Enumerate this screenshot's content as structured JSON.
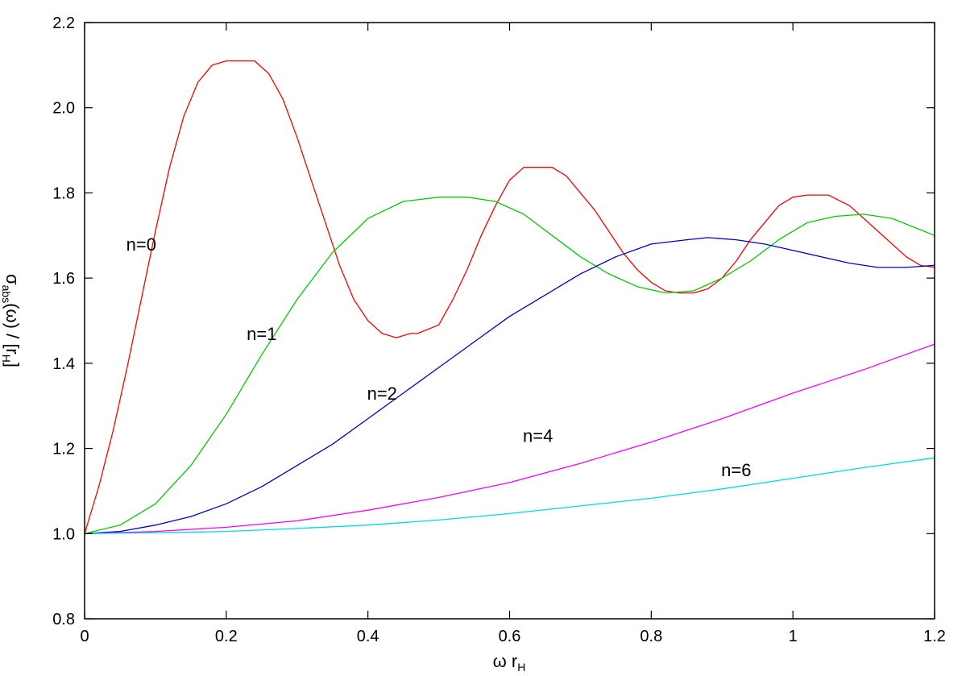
{
  "chart_data": {
    "type": "line",
    "xlabel": "ω r",
    "xlabel_sub": "H",
    "ylabel": "σ",
    "ylabel_sub": "abs",
    "ylabel_suffix": "(ω) / [r",
    "ylabel_suffix_sub": "H",
    "ylabel_suffix_end": "]",
    "xlim": [
      0,
      1.2
    ],
    "ylim": [
      0.8,
      2.2
    ],
    "xticks": [
      0,
      0.2,
      0.4,
      0.6,
      0.8,
      1,
      1.2
    ],
    "xtick_labels": [
      "0",
      "0.2",
      "0.4",
      "0.6",
      "0.8",
      "1",
      "1.2"
    ],
    "yticks": [
      0.8,
      1.0,
      1.2,
      1.4,
      1.6,
      1.8,
      2.0,
      2.2
    ],
    "ytick_labels": [
      "0.8",
      "1.0",
      "1.2",
      "1.4",
      "1.6",
      "1.8",
      "2.0",
      "2.2"
    ],
    "grid": false,
    "series": [
      {
        "name": "n=0",
        "color": "#ff0000",
        "label_at": [
          0.08,
          1.68
        ],
        "x": [
          0,
          0.02,
          0.04,
          0.06,
          0.08,
          0.1,
          0.12,
          0.14,
          0.16,
          0.18,
          0.2,
          0.22,
          0.24,
          0.26,
          0.28,
          0.3,
          0.32,
          0.34,
          0.36,
          0.38,
          0.4,
          0.42,
          0.44,
          0.46,
          0.47,
          0.5,
          0.52,
          0.54,
          0.56,
          0.58,
          0.6,
          0.62,
          0.64,
          0.66,
          0.68,
          0.7,
          0.72,
          0.74,
          0.76,
          0.78,
          0.8,
          0.82,
          0.84,
          0.86,
          0.88,
          0.9,
          0.92,
          0.94,
          0.96,
          0.98,
          1.0,
          1.02,
          1.05,
          1.08,
          1.1,
          1.12,
          1.14,
          1.16,
          1.18,
          1.2
        ],
        "y": [
          1.0,
          1.11,
          1.24,
          1.39,
          1.55,
          1.71,
          1.86,
          1.98,
          2.06,
          2.1,
          2.11,
          2.11,
          2.11,
          2.08,
          2.02,
          1.93,
          1.83,
          1.73,
          1.63,
          1.55,
          1.5,
          1.47,
          1.46,
          1.47,
          1.47,
          1.49,
          1.55,
          1.62,
          1.7,
          1.77,
          1.83,
          1.86,
          1.86,
          1.86,
          1.84,
          1.8,
          1.76,
          1.71,
          1.66,
          1.62,
          1.59,
          1.57,
          1.565,
          1.565,
          1.575,
          1.6,
          1.64,
          1.69,
          1.73,
          1.77,
          1.79,
          1.795,
          1.795,
          1.77,
          1.74,
          1.71,
          1.68,
          1.65,
          1.63,
          1.625
        ]
      },
      {
        "name": "n=1",
        "color": "#00cc00",
        "label_at": [
          0.25,
          1.47
        ],
        "x": [
          0,
          0.05,
          0.1,
          0.15,
          0.2,
          0.25,
          0.3,
          0.35,
          0.4,
          0.45,
          0.5,
          0.54,
          0.58,
          0.62,
          0.66,
          0.7,
          0.74,
          0.78,
          0.82,
          0.86,
          0.9,
          0.94,
          0.98,
          1.02,
          1.06,
          1.1,
          1.14,
          1.17,
          1.2
        ],
        "y": [
          1.0,
          1.02,
          1.07,
          1.16,
          1.28,
          1.42,
          1.55,
          1.66,
          1.74,
          1.78,
          1.79,
          1.79,
          1.78,
          1.75,
          1.7,
          1.65,
          1.61,
          1.58,
          1.565,
          1.57,
          1.6,
          1.64,
          1.69,
          1.73,
          1.745,
          1.75,
          1.74,
          1.72,
          1.7
        ]
      },
      {
        "name": "n=2",
        "color": "#0000cc",
        "label_at": [
          0.42,
          1.33
        ],
        "x": [
          0,
          0.05,
          0.1,
          0.15,
          0.2,
          0.25,
          0.3,
          0.35,
          0.4,
          0.45,
          0.5,
          0.55,
          0.6,
          0.65,
          0.7,
          0.75,
          0.8,
          0.85,
          0.88,
          0.92,
          0.96,
          1.0,
          1.04,
          1.08,
          1.12,
          1.16,
          1.2
        ],
        "y": [
          1.0,
          1.005,
          1.02,
          1.04,
          1.07,
          1.11,
          1.16,
          1.21,
          1.27,
          1.33,
          1.39,
          1.45,
          1.51,
          1.56,
          1.61,
          1.65,
          1.68,
          1.69,
          1.695,
          1.69,
          1.68,
          1.665,
          1.65,
          1.635,
          1.625,
          1.625,
          1.63
        ]
      },
      {
        "name": "n=4",
        "color": "#ff00ff",
        "label_at": [
          0.64,
          1.23
        ],
        "x": [
          0,
          0.1,
          0.2,
          0.3,
          0.4,
          0.5,
          0.6,
          0.7,
          0.8,
          0.9,
          1.0,
          1.1,
          1.2
        ],
        "y": [
          1.0,
          1.005,
          1.015,
          1.03,
          1.055,
          1.085,
          1.12,
          1.165,
          1.215,
          1.27,
          1.33,
          1.385,
          1.445
        ]
      },
      {
        "name": "n=6",
        "color": "#00dddd",
        "label_at": [
          0.92,
          1.15
        ],
        "x": [
          0,
          0.1,
          0.2,
          0.3,
          0.4,
          0.5,
          0.6,
          0.7,
          0.8,
          0.9,
          1.0,
          1.1,
          1.2
        ],
        "y": [
          1.0,
          1.002,
          1.005,
          1.012,
          1.02,
          1.032,
          1.047,
          1.065,
          1.083,
          1.105,
          1.13,
          1.155,
          1.178
        ]
      }
    ]
  }
}
